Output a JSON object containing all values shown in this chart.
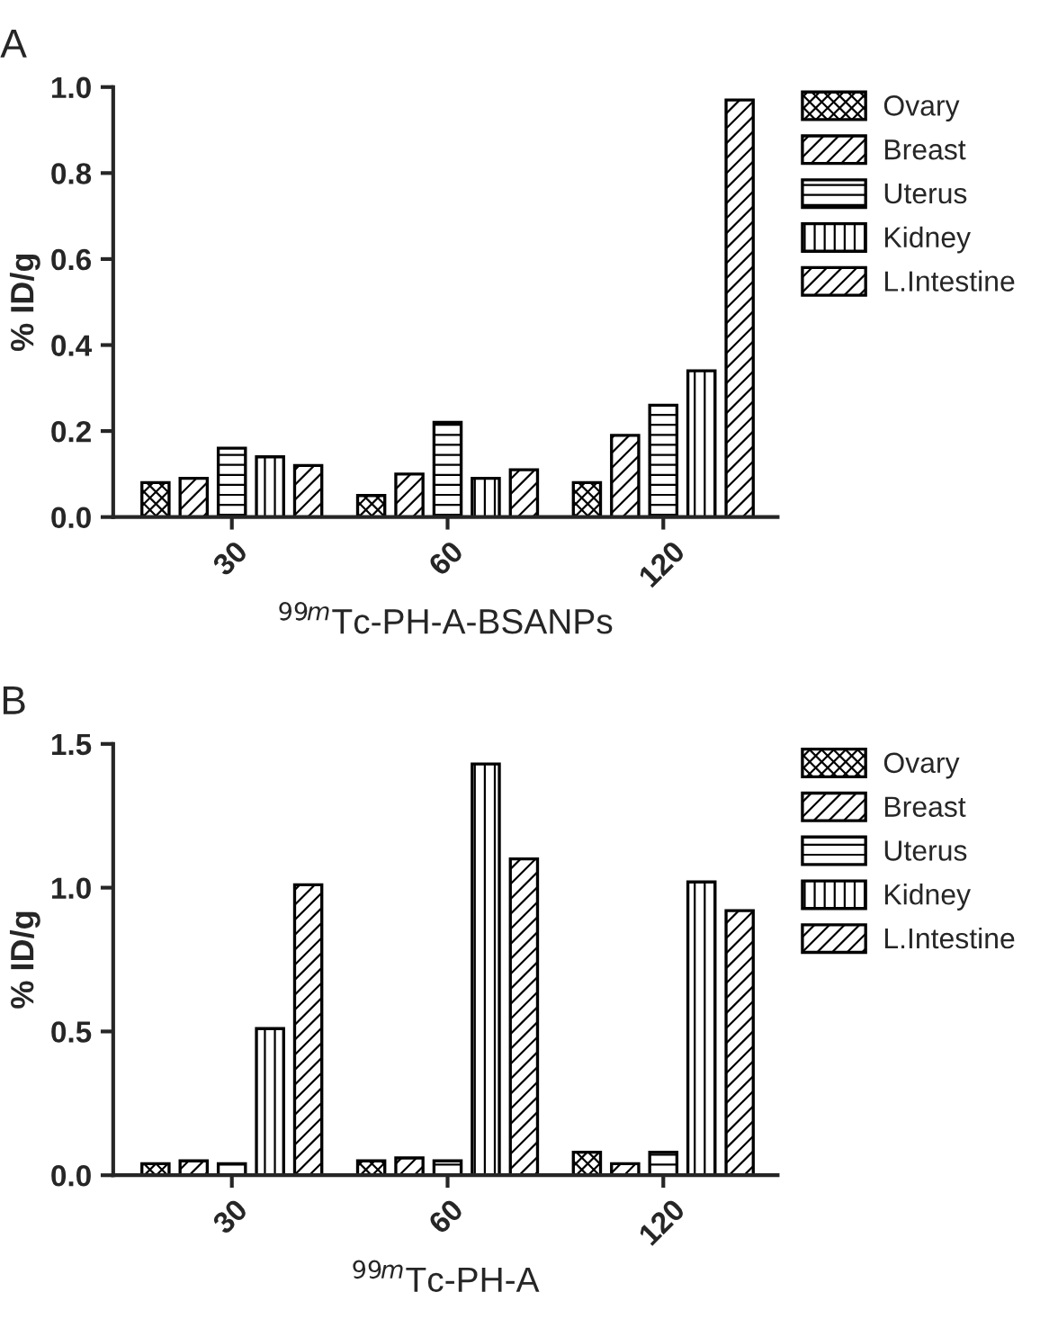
{
  "chart_data": [
    {
      "type": "bar",
      "title": "A",
      "xlabel": "$^{99m}$Tc-PH-A-BSANPs",
      "ylabel": "% ID/g",
      "categories": [
        "30",
        "60",
        "120"
      ],
      "ylim": [
        0,
        1.0
      ],
      "yticks": [
        {
          "value": 0,
          "label": "0.0"
        },
        {
          "value": 0.2,
          "label": "0.2"
        },
        {
          "value": 0.4,
          "label": "0.4"
        },
        {
          "value": 0.6,
          "label": "0.6"
        },
        {
          "value": 0.8,
          "label": "0.8"
        },
        {
          "value": 1.0,
          "label": "1.0"
        }
      ],
      "legend": "right",
      "grid": false,
      "series": [
        {
          "name": "Ovary",
          "values": [
            0.08,
            0.05,
            0.08
          ]
        },
        {
          "name": "Breast",
          "values": [
            0.09,
            0.1,
            0.19
          ]
        },
        {
          "name": "Uterus",
          "values": [
            0.16,
            0.22,
            0.26
          ]
        },
        {
          "name": "Kidney",
          "values": [
            0.14,
            0.09,
            0.34
          ]
        },
        {
          "name": "L.Intestine",
          "values": [
            0.12,
            0.11,
            0.97
          ]
        }
      ]
    },
    {
      "type": "bar",
      "title": "B",
      "xlabel": "$^{99m}$Tc-PH-A",
      "ylabel": "% ID/g",
      "categories": [
        "30",
        "60",
        "120"
      ],
      "ylim": [
        0,
        1.5
      ],
      "yticks": [
        {
          "value": 0,
          "label": "0.0"
        },
        {
          "value": 0.5,
          "label": "0.5"
        },
        {
          "value": 1.0,
          "label": "1.0"
        },
        {
          "value": 1.5,
          "label": "1.5"
        }
      ],
      "legend": "right",
      "grid": false,
      "series": [
        {
          "name": "Ovary",
          "values": [
            0.04,
            0.05,
            0.08
          ]
        },
        {
          "name": "Breast",
          "values": [
            0.05,
            0.06,
            0.04
          ]
        },
        {
          "name": "Uterus",
          "values": [
            0.04,
            0.05,
            0.08
          ]
        },
        {
          "name": "Kidney",
          "values": [
            0.51,
            1.43,
            1.02
          ]
        },
        {
          "name": "L.Intestine",
          "values": [
            1.01,
            1.1,
            0.92
          ]
        }
      ]
    }
  ]
}
